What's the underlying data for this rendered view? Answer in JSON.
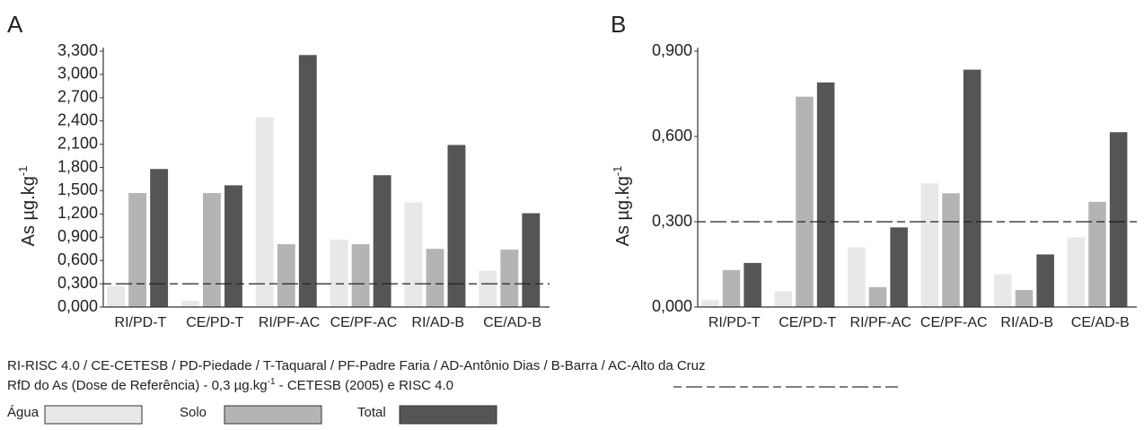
{
  "chart_data": [
    {
      "type": "bar",
      "label": "A",
      "y_label": "As µg.kg",
      "y_label_sup": "-1",
      "categories": [
        "RI/PD-T",
        "CE/PD-T",
        "RI/PF-AC",
        "CE/PF-AC",
        "RI/AD-B",
        "CE/AD-B"
      ],
      "series": [
        {
          "name": "Água",
          "color": "#e8e8e8",
          "values": [
            0.27,
            0.08,
            2.45,
            0.87,
            1.35,
            0.47
          ]
        },
        {
          "name": "Solo",
          "color": "#b4b4b4",
          "values": [
            1.47,
            1.47,
            0.81,
            0.81,
            0.75,
            0.74
          ]
        },
        {
          "name": "Total",
          "color": "#555555",
          "values": [
            1.78,
            1.57,
            3.25,
            1.7,
            2.09,
            1.21
          ]
        }
      ],
      "ylim": [
        0,
        3.3
      ],
      "yticks": [
        {
          "value": 0,
          "label": "0,000"
        },
        {
          "value": 0.3,
          "label": "0,300"
        },
        {
          "value": 0.6,
          "label": "0,600"
        },
        {
          "value": 0.9,
          "label": "0,900"
        },
        {
          "value": 1.2,
          "label": "1,200"
        },
        {
          "value": 1.5,
          "label": "1,500"
        },
        {
          "value": 1.8,
          "label": "1,800"
        },
        {
          "value": 2.1,
          "label": "2,100"
        },
        {
          "value": 2.4,
          "label": "2,400"
        },
        {
          "value": 2.7,
          "label": "2,700"
        },
        {
          "value": 3.0,
          "label": "3,000"
        },
        {
          "value": 3.3,
          "label": "3,300"
        }
      ],
      "reference_line": 0.3
    },
    {
      "type": "bar",
      "label": "B",
      "y_label": "As µg.kg",
      "y_label_sup": "-1",
      "categories": [
        "RI/PD-T",
        "CE/PD-T",
        "RI/PF-AC",
        "CE/PF-AC",
        "RI/AD-B",
        "CE/AD-B"
      ],
      "series": [
        {
          "color": "#e8e8e8",
          "values": [
            0.025,
            0.055,
            0.21,
            0.435,
            0.115,
            0.245
          ]
        },
        {
          "color": "#b4b4b4",
          "values": [
            0.13,
            0.74,
            0.07,
            0.4,
            0.06,
            0.37
          ]
        },
        {
          "color": "#555555",
          "values": [
            0.155,
            0.79,
            0.28,
            0.835,
            0.185,
            0.615
          ]
        }
      ],
      "ylim": [
        0,
        0.9
      ],
      "yticks": [
        {
          "value": 0,
          "label": "0,000"
        },
        {
          "value": 0.3,
          "label": "0,300"
        },
        {
          "value": 0.6,
          "label": "0,600"
        },
        {
          "value": 0.9,
          "label": "0,900"
        }
      ],
      "reference_line": 0.3
    }
  ],
  "notes": {
    "abbreviations": "RI-RISC 4.0 / CE-CETESB / PD-Piedade / T-Taquaral / PF-Padre Faria / AD-Antônio Dias / B-Barra / AC-Alto da Cruz",
    "reference": [
      "RfD do As (Dose de Referência) - 0,3 µg.kg",
      "-1",
      " - CETESB (2005) e RISC 4.0"
    ]
  }
}
